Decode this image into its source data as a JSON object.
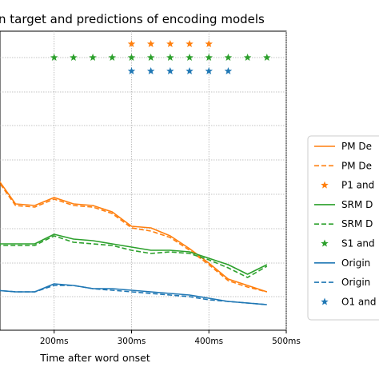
{
  "chart_data": {
    "type": "line",
    "title": "n target and predictions of encoding models",
    "xlabel": "Time after word onset",
    "ylabel": "",
    "x_tick_labels": [
      "200ms",
      "300ms",
      "400ms",
      "500ms"
    ],
    "x_tick_values": [
      200,
      300,
      400,
      500
    ],
    "xlim": [
      130,
      500
    ],
    "ylim": [
      0,
      100
    ],
    "grid": true,
    "legend_position": "right",
    "x": [
      125,
      150,
      175,
      200,
      225,
      250,
      275,
      300,
      325,
      350,
      375,
      400,
      425,
      450,
      475
    ],
    "series": [
      {
        "name": "PM De",
        "color": "#ff7f0e",
        "style": "solid",
        "values": [
          75,
          58,
          57,
          62,
          58,
          57,
          53,
          44,
          43,
          38,
          30,
          21,
          11,
          7,
          3
        ]
      },
      {
        "name": "PM De",
        "color": "#ff7f0e",
        "style": "dashed",
        "values": [
          74,
          57,
          56,
          61,
          57,
          56,
          52,
          43,
          41,
          37,
          29,
          20,
          10,
          6,
          3
        ]
      },
      {
        "name": "SRM D",
        "color": "#2ca02c",
        "style": "solid",
        "values": [
          33,
          33,
          33,
          39,
          36,
          35,
          33,
          31,
          29,
          29,
          28,
          24,
          20,
          14,
          20
        ]
      },
      {
        "name": "SRM D",
        "color": "#2ca02c",
        "style": "dashed",
        "values": [
          32,
          32,
          32,
          38,
          34,
          33,
          32,
          29,
          27,
          28,
          27,
          23,
          18,
          12,
          19
        ]
      },
      {
        "name": "Origin",
        "color": "#1f77b4",
        "style": "solid",
        "values": [
          4,
          3,
          3,
          8,
          7,
          5,
          5,
          4,
          3,
          2,
          1,
          -1,
          -3,
          -4,
          -5
        ]
      },
      {
        "name": "Origin",
        "color": "#1f77b4",
        "style": "dashed",
        "values": [
          4,
          3,
          3,
          7,
          7,
          5,
          4,
          3,
          2,
          1,
          0,
          -2,
          -3,
          -4,
          -5
        ]
      }
    ],
    "markers": [
      {
        "name": "P1 and",
        "color": "#ff7f0e",
        "y": 116,
        "x": [
          300,
          325,
          350,
          375,
          400
        ]
      },
      {
        "name": "S1 and",
        "color": "#2ca02c",
        "y": 111,
        "x": [
          200,
          225,
          250,
          275,
          300,
          325,
          350,
          375,
          400,
          425,
          450,
          475
        ]
      },
      {
        "name": "O1 and",
        "color": "#1f77b4",
        "y": 106,
        "x": [
          300,
          325,
          350,
          375,
          400,
          425
        ]
      }
    ],
    "legend": [
      {
        "label": "PM De",
        "kind": "line",
        "color": "#ff7f0e",
        "style": "solid"
      },
      {
        "label": "PM De",
        "kind": "line",
        "color": "#ff7f0e",
        "style": "dashed"
      },
      {
        "label": "P1 and",
        "kind": "marker",
        "color": "#ff7f0e"
      },
      {
        "label": "SRM D",
        "kind": "line",
        "color": "#2ca02c",
        "style": "solid"
      },
      {
        "label": "SRM D",
        "kind": "line",
        "color": "#2ca02c",
        "style": "dashed"
      },
      {
        "label": "S1 and",
        "kind": "marker",
        "color": "#2ca02c"
      },
      {
        "label": "Origin",
        "kind": "line",
        "color": "#1f77b4",
        "style": "solid"
      },
      {
        "label": "Origin",
        "kind": "line",
        "color": "#1f77b4",
        "style": "dashed"
      },
      {
        "label": "O1 and",
        "kind": "marker",
        "color": "#1f77b4"
      }
    ]
  }
}
